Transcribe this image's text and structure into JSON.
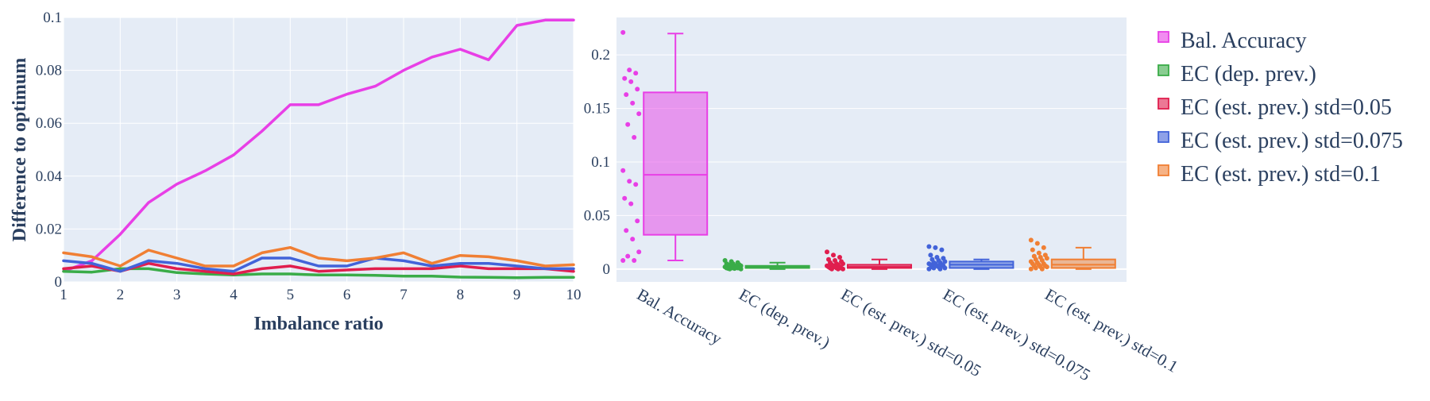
{
  "colors": {
    "plot_bg": "#e5ecf6",
    "grid": "#ffffff",
    "text": "#2a3f5f"
  },
  "legend": {
    "placement": "right",
    "items": [
      {
        "label": "Bal. Accuracy",
        "color": "#e83fe6"
      },
      {
        "label": "EC (dep. prev.)",
        "color": "#3aac48"
      },
      {
        "label": "EC (est. prev.) std=0.05",
        "color": "#e01e4e"
      },
      {
        "label": "EC (est. prev.) std=0.075",
        "color": "#4263d9"
      },
      {
        "label": "EC (est. prev.) std=0.1",
        "color": "#f07f34"
      }
    ]
  },
  "chart_data": [
    {
      "type": "line",
      "xlabel": "Imbalance ratio",
      "ylabel": "Difference to optimum",
      "xlim": [
        1,
        10
      ],
      "ylim": [
        0,
        0.1
      ],
      "xticks": [
        "1",
        "2",
        "3",
        "4",
        "5",
        "6",
        "7",
        "8",
        "9",
        "10"
      ],
      "yticks": [
        "0",
        "0.02",
        "0.04",
        "0.06",
        "0.08",
        "0.1"
      ],
      "grid": true,
      "x": [
        1,
        1.5,
        2,
        2.5,
        3,
        3.5,
        4,
        4.5,
        5,
        5.5,
        6,
        6.5,
        7,
        7.5,
        8,
        8.5,
        9,
        9.5,
        10
      ],
      "series": [
        {
          "name": "Bal. Accuracy",
          "color": "#e83fe6",
          "values": [
            0.004,
            0.008,
            0.018,
            0.03,
            0.037,
            0.042,
            0.048,
            0.057,
            0.067,
            0.067,
            0.071,
            0.074,
            0.08,
            0.085,
            0.088,
            0.084,
            0.097,
            0.099,
            0.099
          ]
        },
        {
          "name": "EC (dep. prev.)",
          "color": "#3aac48",
          "values": [
            0.004,
            0.0037,
            0.005,
            0.005,
            0.0035,
            0.003,
            0.0026,
            0.003,
            0.003,
            0.0026,
            0.0026,
            0.0025,
            0.0022,
            0.0022,
            0.0018,
            0.0017,
            0.0016,
            0.0017,
            0.0017
          ]
        },
        {
          "name": "EC (est. prev.) std=0.05",
          "color": "#e01e4e",
          "values": [
            0.005,
            0.006,
            0.004,
            0.007,
            0.005,
            0.004,
            0.003,
            0.005,
            0.006,
            0.004,
            0.0045,
            0.005,
            0.005,
            0.005,
            0.006,
            0.005,
            0.005,
            0.005,
            0.004
          ]
        },
        {
          "name": "EC (est. prev.) std=0.075",
          "color": "#4263d9",
          "values": [
            0.008,
            0.007,
            0.004,
            0.008,
            0.007,
            0.005,
            0.004,
            0.009,
            0.009,
            0.006,
            0.006,
            0.009,
            0.008,
            0.006,
            0.007,
            0.007,
            0.006,
            0.005,
            0.005
          ]
        },
        {
          "name": "EC (est. prev.) std=0.1",
          "color": "#f07f34",
          "values": [
            0.011,
            0.0095,
            0.006,
            0.012,
            0.009,
            0.006,
            0.006,
            0.011,
            0.013,
            0.009,
            0.008,
            0.009,
            0.011,
            0.007,
            0.01,
            0.0095,
            0.008,
            0.006,
            0.0065
          ]
        }
      ]
    },
    {
      "type": "box",
      "ylim": [
        -0.012,
        0.235
      ],
      "yticks": [
        "0",
        "0.05",
        "0.1",
        "0.15",
        "0.2"
      ],
      "grid": true,
      "categories": [
        "Bal. Accuracy",
        "EC (dep. prev.)",
        "EC (est. prev.) std=0.05",
        "EC (est. prev.) std=0.075",
        "EC (est. prev.) std=0.1"
      ],
      "boxes": [
        {
          "color": "#e83fe6",
          "min": 0.008,
          "q1": 0.032,
          "median": 0.088,
          "q3": 0.165,
          "max": 0.22,
          "points": [
            0.221,
            0.186,
            0.183,
            0.178,
            0.175,
            0.168,
            0.163,
            0.155,
            0.145,
            0.135,
            0.123,
            0.092,
            0.082,
            0.079,
            0.066,
            0.061,
            0.045,
            0.036,
            0.028,
            0.016,
            0.012,
            0.008,
            0.008
          ]
        },
        {
          "color": "#3aac48",
          "min": 0.0,
          "q1": 0.001,
          "median": 0.002,
          "q3": 0.003,
          "max": 0.006,
          "points": [
            0.008,
            0.007,
            0.006,
            0.005,
            0.005,
            0.004,
            0.004,
            0.003,
            0.003,
            0.003,
            0.002,
            0.002,
            0.002,
            0.001,
            0.001,
            0.001,
            0.001,
            0.0005,
            0.0005,
            0.0,
            0.0
          ]
        },
        {
          "color": "#e01e4e",
          "min": 0.0,
          "q1": 0.001,
          "median": 0.002,
          "q3": 0.004,
          "max": 0.009,
          "points": [
            0.016,
            0.013,
            0.011,
            0.009,
            0.008,
            0.007,
            0.006,
            0.005,
            0.005,
            0.004,
            0.004,
            0.003,
            0.003,
            0.002,
            0.002,
            0.002,
            0.001,
            0.001,
            0.001,
            0.0,
            0.0,
            0.0
          ]
        },
        {
          "color": "#4263d9",
          "min": 0.0,
          "q1": 0.001,
          "median": 0.004,
          "q3": 0.007,
          "max": 0.009,
          "points": [
            0.021,
            0.02,
            0.018,
            0.013,
            0.011,
            0.01,
            0.009,
            0.008,
            0.007,
            0.006,
            0.006,
            0.005,
            0.005,
            0.004,
            0.004,
            0.003,
            0.003,
            0.002,
            0.002,
            0.001,
            0.001,
            0.0,
            0.0
          ]
        },
        {
          "color": "#f07f34",
          "min": 0.0,
          "q1": 0.001,
          "median": 0.004,
          "q3": 0.009,
          "max": 0.02,
          "points": [
            0.027,
            0.024,
            0.02,
            0.018,
            0.015,
            0.013,
            0.012,
            0.011,
            0.01,
            0.009,
            0.008,
            0.007,
            0.006,
            0.005,
            0.005,
            0.004,
            0.003,
            0.003,
            0.002,
            0.002,
            0.001,
            0.0,
            0.0
          ]
        }
      ]
    }
  ]
}
